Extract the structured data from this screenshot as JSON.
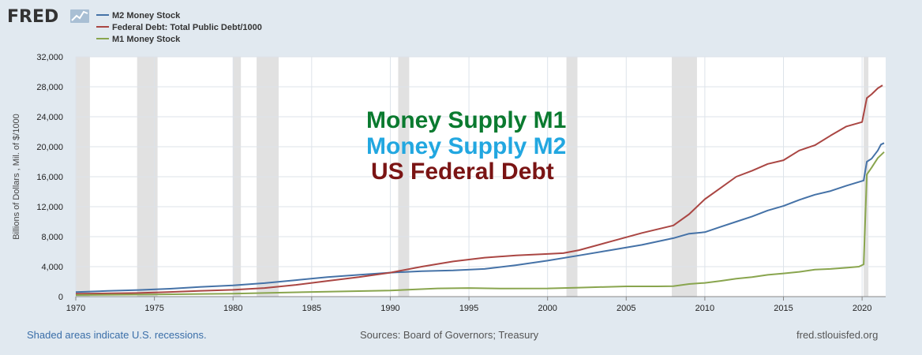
{
  "brand": "FRED",
  "colors": {
    "background": "#e1e9f0",
    "plot_background": "#ffffff",
    "recession_shade": "#e1e1e1",
    "grid": "#dde3ea",
    "m2": "#4572a7",
    "federal_debt": "#aa4643",
    "m1": "#89a54e",
    "overlay_m1": "#0a7a2f",
    "overlay_m2": "#22a7e0",
    "overlay_debt": "#7a1414"
  },
  "overlay_titles": {
    "m1": "Money Supply M1",
    "m2": "Money Supply M2",
    "debt": "US Federal Debt"
  },
  "footer": {
    "note": "Shaded areas indicate U.S. recessions.",
    "sources": "Sources: Board of Governors; Treasury",
    "site": "fred.stlouisfed.org"
  },
  "chart_data": {
    "type": "line",
    "title": "",
    "xlabel": "",
    "ylabel": "Billions of Dollars , Mil. of $/1000",
    "xlim": [
      1970,
      2021.5
    ],
    "ylim": [
      0,
      32000
    ],
    "x_ticks": [
      1970,
      1975,
      1980,
      1985,
      1990,
      1995,
      2000,
      2005,
      2010,
      2015,
      2020
    ],
    "y_ticks": [
      0,
      4000,
      8000,
      12000,
      16000,
      20000,
      24000,
      28000,
      32000
    ],
    "y_tick_labels": [
      "0",
      "4,000",
      "8,000",
      "12,000",
      "16,000",
      "20,000",
      "24,000",
      "28,000",
      "32,000"
    ],
    "grid": true,
    "legend_position": "top-left",
    "recessions": [
      [
        1969.9,
        1970.9
      ],
      [
        1973.9,
        1975.2
      ],
      [
        1980.0,
        1980.5
      ],
      [
        1981.5,
        1982.9
      ],
      [
        1990.5,
        1991.2
      ],
      [
        2001.2,
        2001.9
      ],
      [
        2007.9,
        2009.5
      ],
      [
        2020.1,
        2020.4
      ]
    ],
    "series": [
      {
        "name": "M2 Money Stock",
        "color": "#4572a7",
        "points": [
          [
            1970,
            600
          ],
          [
            1972,
            760
          ],
          [
            1974,
            880
          ],
          [
            1976,
            1050
          ],
          [
            1978,
            1300
          ],
          [
            1980,
            1500
          ],
          [
            1982,
            1800
          ],
          [
            1984,
            2200
          ],
          [
            1986,
            2600
          ],
          [
            1988,
            2900
          ],
          [
            1990,
            3200
          ],
          [
            1992,
            3400
          ],
          [
            1994,
            3500
          ],
          [
            1996,
            3700
          ],
          [
            1998,
            4200
          ],
          [
            2000,
            4800
          ],
          [
            2002,
            5500
          ],
          [
            2004,
            6200
          ],
          [
            2006,
            6900
          ],
          [
            2008,
            7800
          ],
          [
            2009,
            8400
          ],
          [
            2010,
            8600
          ],
          [
            2011,
            9300
          ],
          [
            2012,
            10000
          ],
          [
            2013,
            10700
          ],
          [
            2014,
            11500
          ],
          [
            2015,
            12100
          ],
          [
            2016,
            12900
          ],
          [
            2017,
            13600
          ],
          [
            2018,
            14100
          ],
          [
            2019,
            14800
          ],
          [
            2020.1,
            15500
          ],
          [
            2020.3,
            18000
          ],
          [
            2020.6,
            18400
          ],
          [
            2021,
            19500
          ],
          [
            2021.2,
            20300
          ],
          [
            2021.4,
            20500
          ]
        ]
      },
      {
        "name": "Federal Debt: Total Public Debt/1000",
        "color": "#aa4643",
        "points": [
          [
            1970,
            380
          ],
          [
            1972,
            430
          ],
          [
            1974,
            480
          ],
          [
            1976,
            620
          ],
          [
            1978,
            780
          ],
          [
            1980,
            900
          ],
          [
            1982,
            1150
          ],
          [
            1984,
            1570
          ],
          [
            1986,
            2100
          ],
          [
            1988,
            2600
          ],
          [
            1990,
            3200
          ],
          [
            1992,
            4000
          ],
          [
            1994,
            4700
          ],
          [
            1996,
            5200
          ],
          [
            1998,
            5500
          ],
          [
            2000,
            5700
          ],
          [
            2001,
            5800
          ],
          [
            2002,
            6200
          ],
          [
            2004,
            7350
          ],
          [
            2006,
            8500
          ],
          [
            2008,
            9500
          ],
          [
            2009,
            11000
          ],
          [
            2010,
            13000
          ],
          [
            2011,
            14500
          ],
          [
            2012,
            16000
          ],
          [
            2013,
            16800
          ],
          [
            2014,
            17700
          ],
          [
            2015,
            18200
          ],
          [
            2016,
            19500
          ],
          [
            2017,
            20200
          ],
          [
            2018,
            21500
          ],
          [
            2019,
            22700
          ],
          [
            2020,
            23300
          ],
          [
            2020.3,
            26500
          ],
          [
            2020.6,
            27000
          ],
          [
            2021,
            27800
          ],
          [
            2021.3,
            28200
          ]
        ]
      },
      {
        "name": "M1 Money Stock",
        "color": "#89a54e",
        "points": [
          [
            1970,
            210
          ],
          [
            1975,
            290
          ],
          [
            1980,
            400
          ],
          [
            1985,
            620
          ],
          [
            1990,
            820
          ],
          [
            1993,
            1100
          ],
          [
            1995,
            1150
          ],
          [
            1997,
            1080
          ],
          [
            2000,
            1100
          ],
          [
            2002,
            1200
          ],
          [
            2005,
            1370
          ],
          [
            2007,
            1370
          ],
          [
            2008,
            1400
          ],
          [
            2009,
            1680
          ],
          [
            2010,
            1830
          ],
          [
            2011,
            2100
          ],
          [
            2012,
            2400
          ],
          [
            2013,
            2600
          ],
          [
            2014,
            2900
          ],
          [
            2015,
            3100
          ],
          [
            2016,
            3300
          ],
          [
            2017,
            3600
          ],
          [
            2018,
            3700
          ],
          [
            2019,
            3850
          ],
          [
            2019.8,
            4000
          ],
          [
            2020.1,
            4300
          ],
          [
            2020.3,
            16300
          ],
          [
            2020.6,
            17200
          ],
          [
            2021,
            18500
          ],
          [
            2021.4,
            19300
          ]
        ]
      }
    ]
  }
}
